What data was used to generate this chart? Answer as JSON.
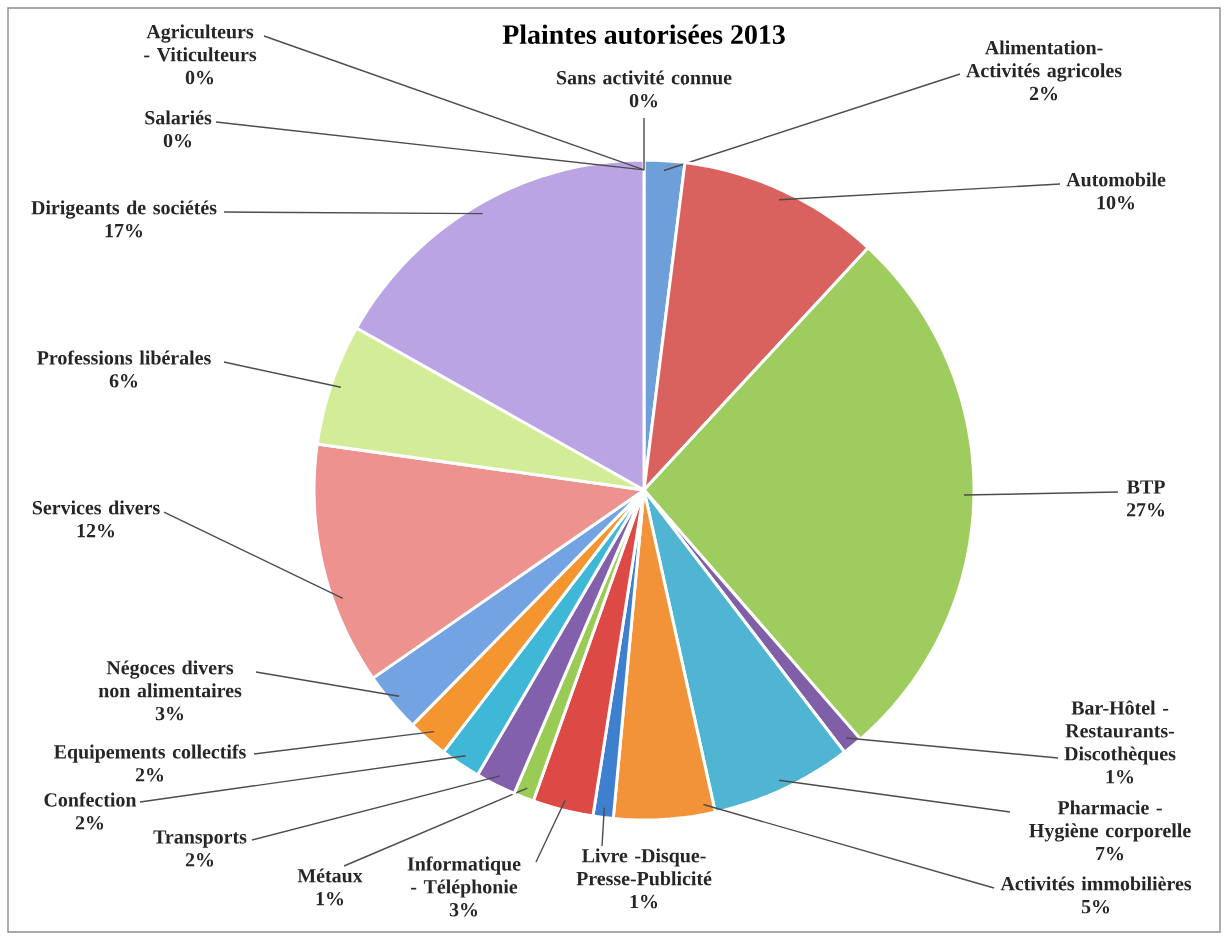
{
  "chart_data": {
    "type": "pie",
    "title": "Plaintes autorisées 2013",
    "categories": [
      "Alimentation-Activités agricoles",
      "Automobile",
      "BTP",
      "Bar-Hôtel - Restaurants-Discothèques",
      "Pharmacie - Hygiène corporelle",
      "Activités immobilières",
      "Livre -Disque- Presse-Publicité",
      "Informatique - Téléphonie",
      "Métaux",
      "Transports",
      "Confection",
      "Equipements collectifs",
      "Négoces divers non alimentaires",
      "Services divers",
      "Professions libérales",
      "Dirigeants de sociétés",
      "Salariés",
      "Agriculteurs - Viticulteurs",
      "Sans activité connue"
    ],
    "values": [
      2,
      10,
      27,
      1,
      7,
      5,
      1,
      3,
      1,
      2,
      2,
      2,
      3,
      12,
      6,
      17,
      0,
      0,
      0
    ],
    "value_labels": [
      "2%",
      "10%",
      "27%",
      "1%",
      "7%",
      "5%",
      "1%",
      "3%",
      "1%",
      "2%",
      "2%",
      "2%",
      "3%",
      "12%",
      "6%",
      "17%",
      "0%",
      "0%",
      "0%"
    ],
    "colors": [
      "#6e9fd9",
      "#d9625e",
      "#9fcc5e",
      "#7e5fa8",
      "#4fb5d2",
      "#f39339",
      "#3f7fd0",
      "#dd4a46",
      "#9acb55",
      "#8260ac",
      "#3fb8d8",
      "#f5952f",
      "#73a3e3",
      "#ee9290",
      "#d3ec98",
      "#bba4e3",
      "#79cde0",
      "#f6b77a",
      "#a9c3e8"
    ]
  }
}
